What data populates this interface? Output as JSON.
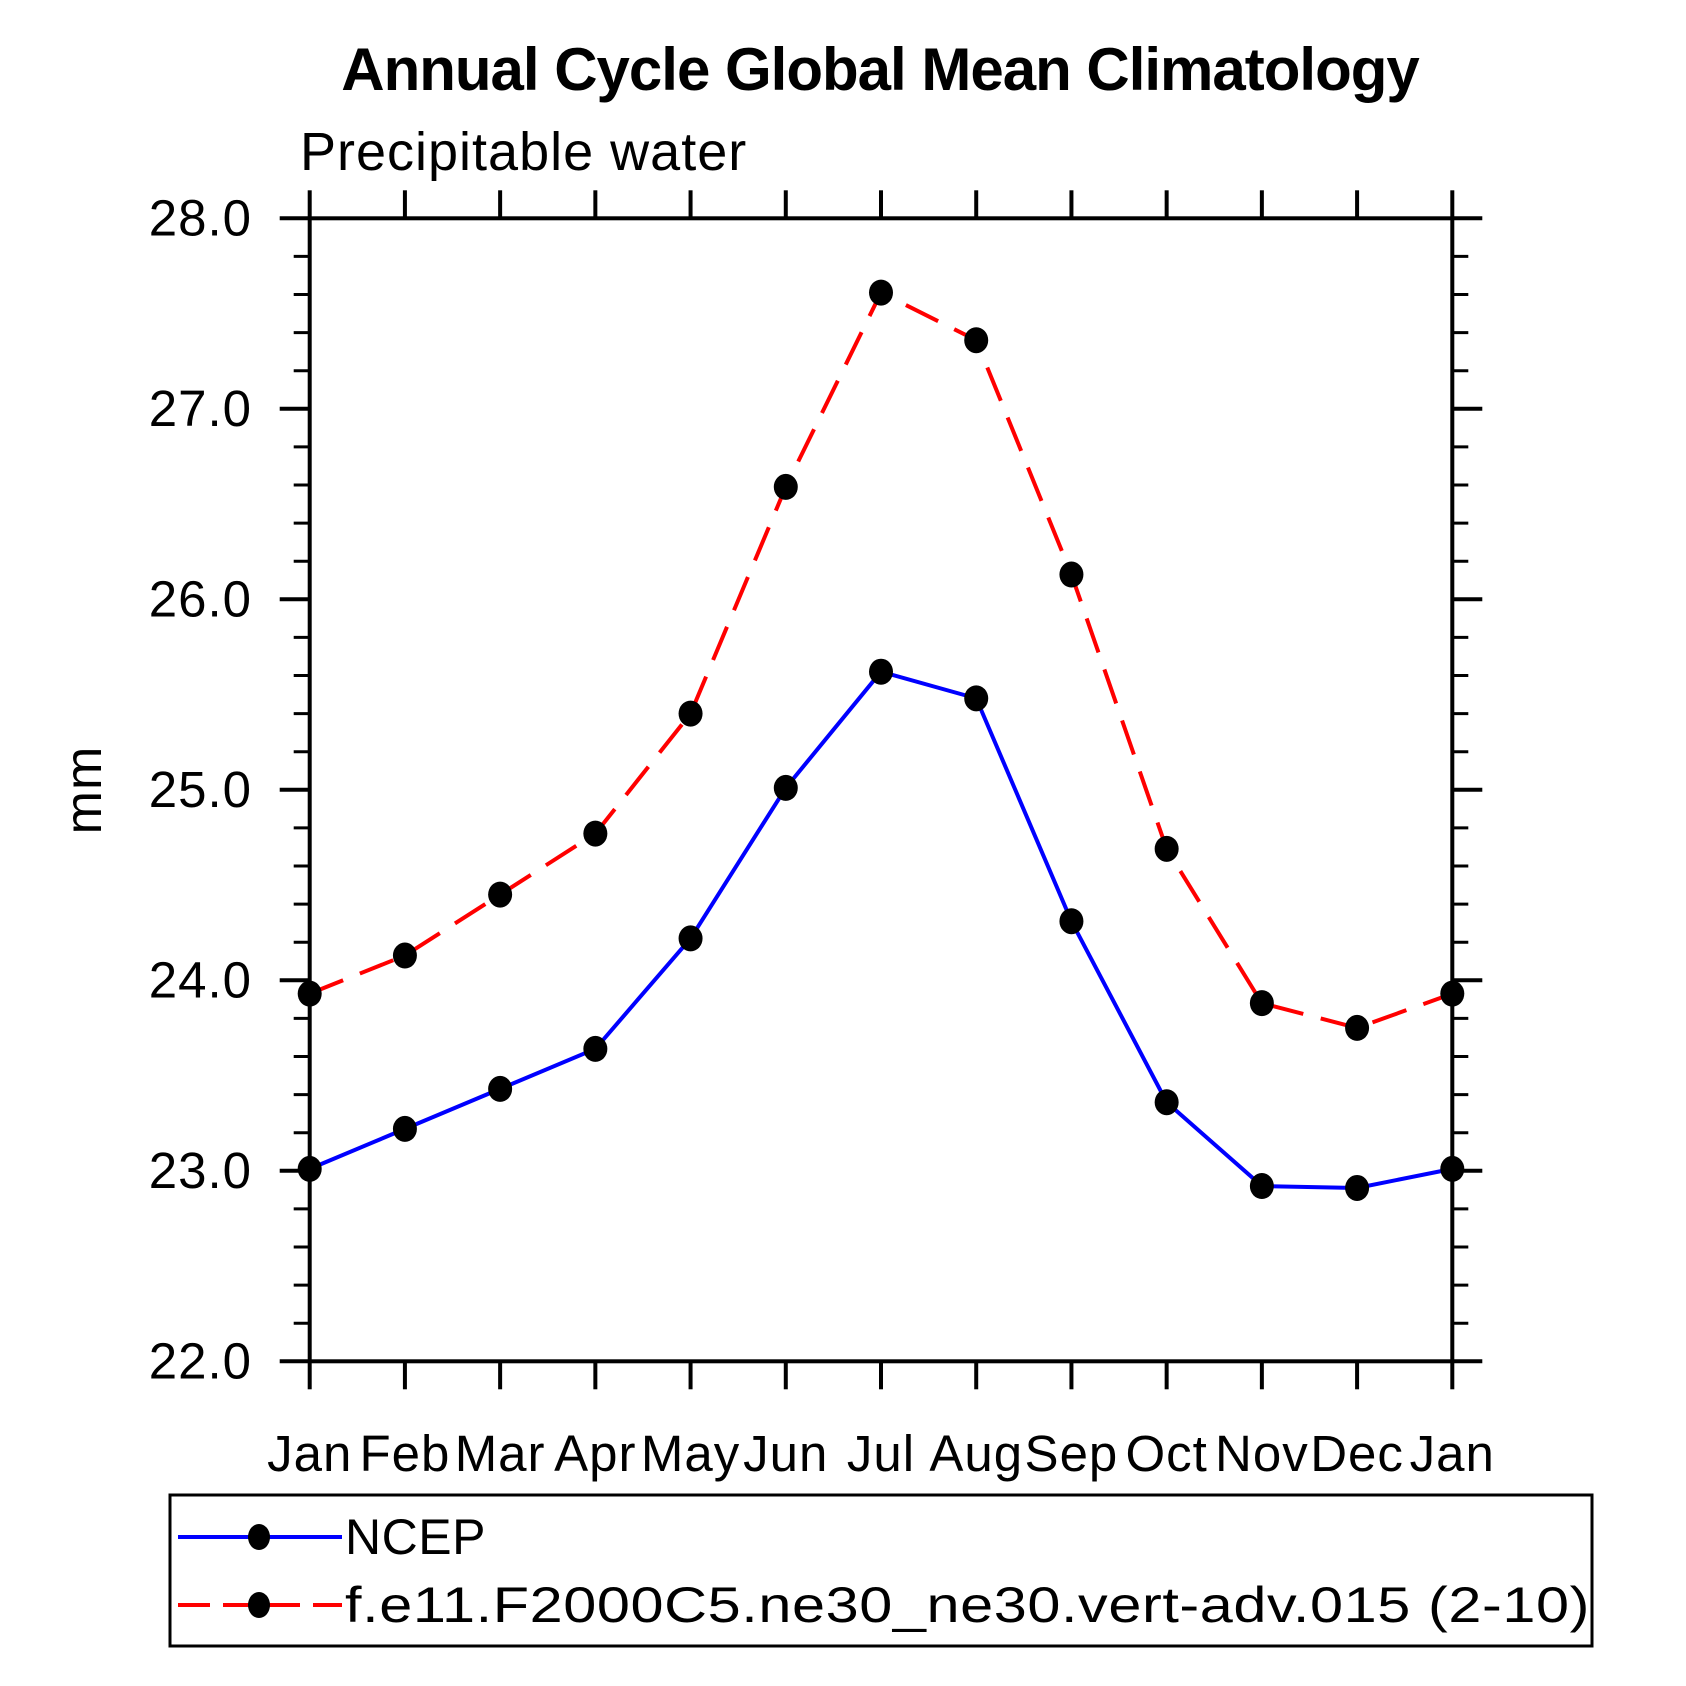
{
  "title": "Annual Cycle Global Mean Climatology",
  "subtitle": "Precipitable water",
  "ylabel": "mm",
  "colors": {
    "ncep_line": "#0000ff",
    "model_line": "#ff0000",
    "marker": "#000000",
    "axis": "#000000",
    "background": "#ffffff"
  },
  "legend": {
    "entries": [
      {
        "label": "NCEP",
        "color": "#0000ff",
        "style": "solid",
        "marker": "filled-circle"
      },
      {
        "label": "f.e11.F2000C5.ne30_ne30.vert-adv.015 (2-10)",
        "color": "#ff0000",
        "style": "dashed",
        "marker": "filled-circle"
      }
    ]
  },
  "chart_data": {
    "type": "line",
    "title": "Annual Cycle Global Mean Climatology",
    "subtitle": "Precipitable water",
    "xlabel": "",
    "ylabel": "mm",
    "categories": [
      "Jan",
      "Feb",
      "Mar",
      "Apr",
      "May",
      "Jun",
      "Jul",
      "Aug",
      "Sep",
      "Oct",
      "Nov",
      "Dec",
      "Jan"
    ],
    "series": [
      {
        "name": "NCEP",
        "color": "#0000ff",
        "style": "solid",
        "marker": "filled-circle",
        "values": [
          23.01,
          23.22,
          23.43,
          23.64,
          24.22,
          25.01,
          25.62,
          25.48,
          24.31,
          23.36,
          22.92,
          22.91,
          23.01
        ]
      },
      {
        "name": "f.e11.F2000C5.ne30_ne30.vert-adv.015 (2-10)",
        "color": "#ff0000",
        "style": "dashed",
        "marker": "filled-circle",
        "values": [
          23.93,
          24.13,
          24.45,
          24.77,
          25.4,
          26.59,
          27.61,
          27.36,
          26.13,
          24.69,
          23.88,
          23.75,
          23.93
        ]
      }
    ],
    "ylim": [
      22.0,
      28.0
    ],
    "ytick_major_step": 1.0,
    "ytick_minor_step": 0.2,
    "ytick_labels": [
      "22.0",
      "23.0",
      "24.0",
      "25.0",
      "26.0",
      "27.0",
      "28.0"
    ],
    "grid": false,
    "legend_position": "bottom"
  }
}
